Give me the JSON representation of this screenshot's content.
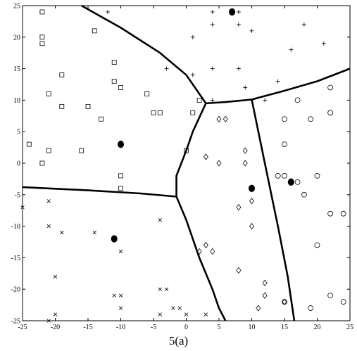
{
  "caption": "5(a)",
  "chart_data": {
    "type": "scatter",
    "title": "",
    "xlabel": "",
    "ylabel": "",
    "xlim": [
      -25,
      25
    ],
    "ylim": [
      -25,
      25
    ],
    "xticks": [
      -25,
      -20,
      -15,
      -10,
      -5,
      0,
      5,
      10,
      15,
      20,
      25
    ],
    "yticks": [
      -25,
      -20,
      -15,
      -10,
      -5,
      0,
      5,
      10,
      15,
      20,
      25
    ],
    "grid": false,
    "legend": "none",
    "series": [
      {
        "marker": "square",
        "points": [
          [
            -22,
            24
          ],
          [
            -22,
            20
          ],
          [
            -22,
            19
          ],
          [
            -14,
            21
          ],
          [
            -19,
            14
          ],
          [
            -21,
            11
          ],
          [
            -19,
            9
          ],
          [
            -11,
            16
          ],
          [
            -11,
            13
          ],
          [
            -10,
            12
          ],
          [
            -15,
            9
          ],
          [
            -13,
            7
          ],
          [
            -6,
            11
          ],
          [
            -5,
            8
          ],
          [
            -4,
            8
          ],
          [
            1,
            8
          ],
          [
            2,
            10
          ],
          [
            -24,
            3
          ],
          [
            -21,
            2
          ],
          [
            -16,
            2
          ],
          [
            -22,
            0
          ],
          [
            -10,
            -2
          ],
          [
            -10,
            -4
          ],
          [
            0,
            2
          ]
        ]
      },
      {
        "marker": "plus",
        "points": [
          [
            -12,
            24
          ],
          [
            4,
            24
          ],
          [
            8,
            24
          ],
          [
            4,
            22
          ],
          [
            8,
            22
          ],
          [
            10,
            21
          ],
          [
            18,
            22
          ],
          [
            21,
            19
          ],
          [
            1,
            20
          ],
          [
            16,
            18
          ],
          [
            -3,
            15
          ],
          [
            1,
            14
          ],
          [
            4,
            15
          ],
          [
            8,
            15
          ],
          [
            9,
            12
          ],
          [
            14,
            13
          ],
          [
            4,
            10
          ],
          [
            12,
            10
          ]
        ]
      },
      {
        "marker": "diamond",
        "points": [
          [
            5,
            7
          ],
          [
            6,
            7
          ],
          [
            3,
            1
          ],
          [
            5,
            0
          ],
          [
            9,
            2
          ],
          [
            9,
            0
          ],
          [
            10,
            -6
          ],
          [
            8,
            -7
          ],
          [
            10,
            -10
          ],
          [
            2,
            -14
          ],
          [
            3,
            -13
          ],
          [
            4,
            -14
          ],
          [
            8,
            -17
          ],
          [
            12,
            -19
          ],
          [
            12,
            -21
          ],
          [
            11,
            -23
          ],
          [
            15,
            -22
          ]
        ]
      },
      {
        "marker": "circle",
        "points": [
          [
            22,
            12
          ],
          [
            17,
            10
          ],
          [
            15,
            7
          ],
          [
            19,
            7
          ],
          [
            22,
            8
          ],
          [
            15,
            3
          ],
          [
            14,
            -2
          ],
          [
            15,
            -2
          ],
          [
            17,
            -3
          ],
          [
            18,
            -5
          ],
          [
            20,
            -2
          ],
          [
            22,
            -8
          ],
          [
            24,
            -8
          ],
          [
            20,
            -13
          ],
          [
            22,
            -21
          ],
          [
            24,
            -22
          ],
          [
            19,
            -23
          ],
          [
            15,
            -22
          ]
        ]
      },
      {
        "marker": "x",
        "points": [
          [
            -25,
            -7
          ],
          [
            -21,
            -6
          ],
          [
            -21,
            -10
          ],
          [
            -19,
            -11
          ],
          [
            -14,
            -11
          ],
          [
            -10,
            -14
          ],
          [
            -4,
            -9
          ],
          [
            -20,
            -18
          ],
          [
            -11,
            -21
          ],
          [
            -10,
            -21
          ],
          [
            -10,
            -23
          ],
          [
            -4,
            -20
          ],
          [
            -3,
            -20
          ],
          [
            -2,
            -23
          ],
          [
            -1,
            -23
          ],
          [
            0,
            -24
          ],
          [
            3,
            -24
          ],
          [
            -4,
            -24
          ],
          [
            -20,
            -24
          ],
          [
            -21,
            -25
          ]
        ]
      }
    ],
    "centroids": [
      [
        7,
        24
      ],
      [
        -10,
        3
      ],
      [
        -11,
        -12
      ],
      [
        10,
        -4
      ],
      [
        16,
        -3
      ]
    ],
    "boundaries": [
      [
        [
          -16,
          25
        ],
        [
          -10,
          21.5
        ],
        [
          -4,
          17.5
        ],
        [
          0,
          14
        ],
        [
          3,
          9.5
        ]
      ],
      [
        [
          3,
          9.5
        ],
        [
          6,
          9.7
        ],
        [
          10,
          10.1
        ]
      ],
      [
        [
          10,
          10.1
        ],
        [
          15,
          11.5
        ],
        [
          20,
          13
        ],
        [
          25,
          15
        ]
      ],
      [
        [
          3,
          9.5
        ],
        [
          1,
          5
        ],
        [
          0,
          2
        ],
        [
          -1.5,
          -2
        ],
        [
          -1.5,
          -5.3
        ]
      ],
      [
        [
          -25,
          -3.8
        ],
        [
          -15,
          -4.3
        ],
        [
          -7,
          -4.8
        ],
        [
          -1.5,
          -5.3
        ]
      ],
      [
        [
          -1.5,
          -5.3
        ],
        [
          0,
          -9
        ],
        [
          2,
          -15
        ],
        [
          4,
          -20
        ],
        [
          5,
          -23
        ],
        [
          6,
          -25
        ]
      ],
      [
        [
          10,
          10.1
        ],
        [
          12,
          0
        ],
        [
          14,
          -10
        ],
        [
          15.5,
          -18
        ],
        [
          16.5,
          -25
        ]
      ]
    ]
  }
}
